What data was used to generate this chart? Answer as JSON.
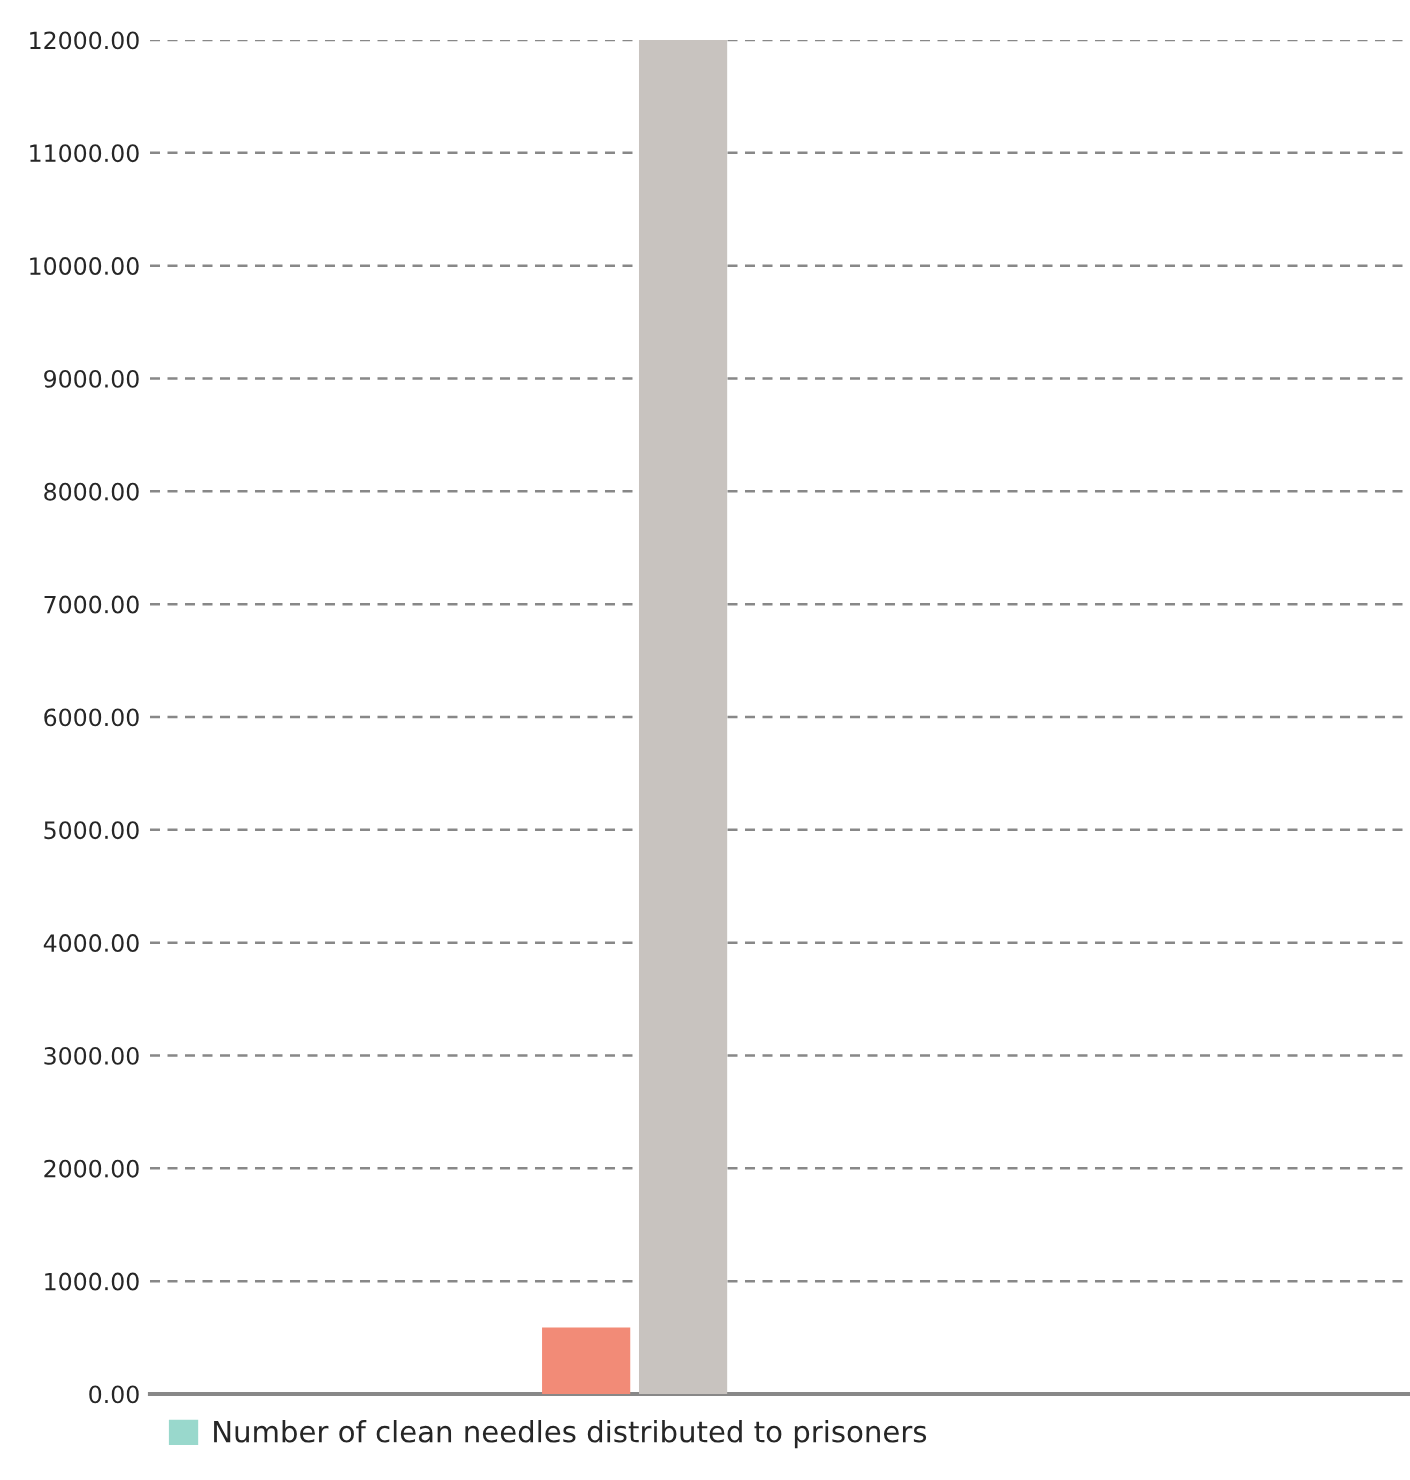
{
  "chart_data": {
    "type": "bar",
    "categories": [
      null,
      null,
      null,
      null,
      null,
      null,
      null,
      null,
      null,
      null,
      null,
      null,
      null
    ],
    "series": [
      {
        "name": "Number of clean needles distributed to prisoners",
        "color": "#99d8cc",
        "values": [
          null,
          null,
          null,
          null,
          590,
          12000,
          null,
          null,
          null,
          null,
          null,
          null,
          null
        ],
        "colors": [
          null,
          null,
          null,
          null,
          "#f28b77",
          "#c8c3bf",
          null,
          null,
          null,
          null,
          null,
          null,
          null
        ]
      }
    ],
    "ylim": [
      0,
      12000
    ],
    "yticks": [
      {
        "value": 0,
        "label": "0.00"
      },
      {
        "value": 1000,
        "label": "1000.00"
      },
      {
        "value": 2000,
        "label": "2000.00"
      },
      {
        "value": 3000,
        "label": "3000.00"
      },
      {
        "value": 4000,
        "label": "4000.00"
      },
      {
        "value": 5000,
        "label": "5000.00"
      },
      {
        "value": 6000,
        "label": "6000.00"
      },
      {
        "value": 7000,
        "label": "7000.00"
      },
      {
        "value": 8000,
        "label": "8000.00"
      },
      {
        "value": 9000,
        "label": "9000.00"
      },
      {
        "value": 10000,
        "label": "10000.00"
      },
      {
        "value": 11000,
        "label": "11000.00"
      },
      {
        "value": 12000,
        "label": "12000.00"
      }
    ],
    "grid": "y",
    "legend": "bottom left"
  }
}
